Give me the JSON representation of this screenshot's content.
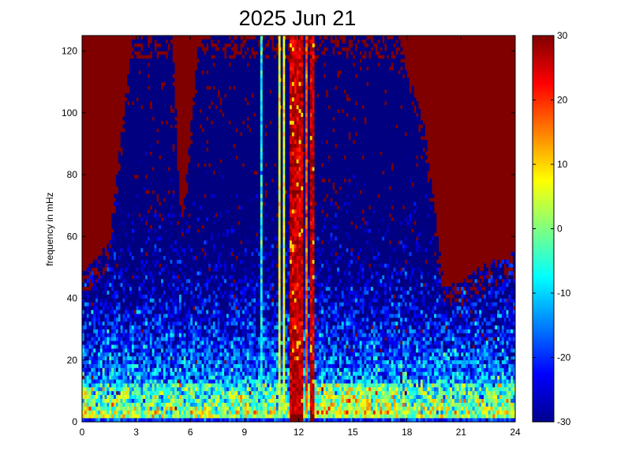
{
  "chart_data": {
    "type": "heatmap",
    "title": "2025 Jun 21",
    "xlabel": "",
    "ylabel": "frequency in mHz",
    "xlim": [
      0,
      24
    ],
    "ylim": [
      0,
      125
    ],
    "x_ticks": [
      "0",
      "3",
      "6",
      "9",
      "12",
      "15",
      "18",
      "21",
      "24"
    ],
    "x_tick_values": [
      0,
      3,
      6,
      9,
      12,
      15,
      18,
      21,
      24
    ],
    "y_ticks": [
      "0",
      "20",
      "40",
      "60",
      "80",
      "100",
      "120"
    ],
    "y_tick_values": [
      0,
      20,
      40,
      60,
      80,
      100,
      120
    ],
    "colorbar": {
      "limits": [
        -30,
        30
      ],
      "ticks": [
        "30",
        "20",
        "10",
        "0",
        "-10",
        "-20",
        "-30"
      ],
      "tick_values": [
        30,
        20,
        10,
        0,
        -10,
        -20,
        -30
      ],
      "colormap": "jet"
    },
    "time_resolution_hours": 0.125,
    "frequency_resolution_mhz": 1.25,
    "approx_saturation_boundary_mhz": [
      {
        "hour": 0,
        "freq": 48
      },
      {
        "hour": 1.5,
        "freq": 58
      },
      {
        "hour": 2.8,
        "freq": 125
      },
      {
        "hour": 5,
        "freq": 125
      },
      {
        "hour": 5.5,
        "freq": 62
      },
      {
        "hour": 6.5,
        "freq": 125
      },
      {
        "hour": 9.5,
        "freq": 125
      },
      {
        "hour": 17.5,
        "freq": 125
      },
      {
        "hour": 19,
        "freq": 95
      },
      {
        "hour": 20,
        "freq": 45
      },
      {
        "hour": 21,
        "freq": 45
      },
      {
        "hour": 22,
        "freq": 50
      },
      {
        "hour": 24,
        "freq": 55
      }
    ],
    "saturated_time_bands_hours": [
      [
        11.5,
        12.3
      ],
      [
        12.6,
        12.9
      ]
    ],
    "bright_vertical_streaks_hours": [
      9.95,
      10.9,
      11.15,
      12.45
    ]
  }
}
